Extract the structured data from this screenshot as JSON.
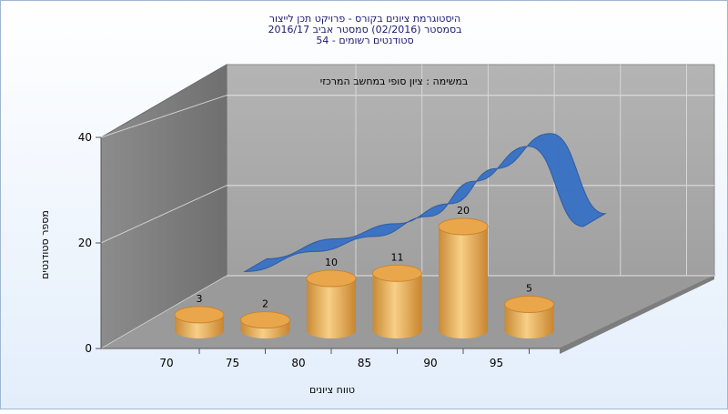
{
  "chart_data": {
    "type": "bar",
    "title_lines": [
      "היסטוגרמת ציונים בקורס - פרויקט תכן לייצור",
      "בסמסטר  (02/2016)  סמסטר אביב 2016/17",
      "סטודנטים רשומים - 54"
    ],
    "annotation": "במשימה : ציון סופי במחשב המרכזי",
    "categories": [
      "70",
      "75",
      "80",
      "85",
      "90",
      "95"
    ],
    "values": [
      3,
      2,
      10,
      11,
      20,
      5
    ],
    "data_labels": [
      "3",
      "2",
      "10",
      "11",
      "20",
      "5"
    ],
    "curve": [
      5,
      9,
      12,
      16,
      23,
      30,
      14
    ],
    "ylim": [
      0,
      40
    ],
    "yticks": [
      "0",
      "20",
      "40"
    ],
    "ylabel": "מספר סטודנטים",
    "xlabel": "טווח ציונים",
    "grid": true,
    "colors": {
      "bar": "#f0b862",
      "bar_dark": "#c9852f",
      "curve": "#3a72c4",
      "wall": "#a9a9a9",
      "left_wall": "#7f7f7f",
      "floor": "#9a9a9a"
    }
  }
}
